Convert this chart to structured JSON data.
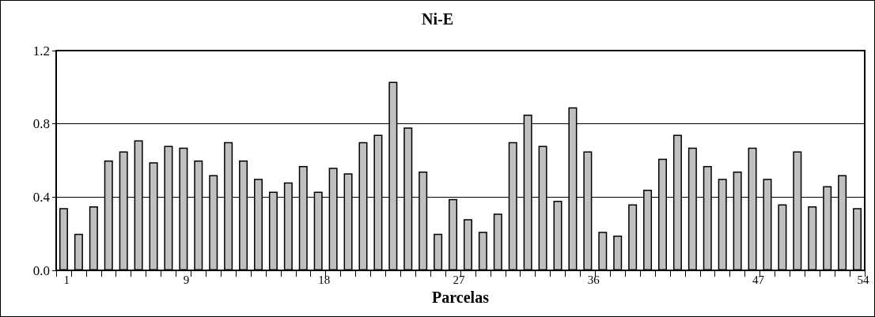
{
  "chart_data": {
    "type": "bar",
    "title": "Ni-E",
    "xlabel": "Parcelas",
    "categories": [
      "1",
      null,
      null,
      null,
      null,
      null,
      null,
      null,
      "9",
      null,
      null,
      null,
      null,
      null,
      null,
      null,
      null,
      "18",
      null,
      null,
      null,
      null,
      null,
      null,
      null,
      null,
      "27",
      null,
      null,
      null,
      null,
      null,
      null,
      null,
      null,
      "36",
      null,
      null,
      null,
      null,
      null,
      null,
      null,
      null,
      null,
      null,
      "47",
      null,
      null,
      null,
      null,
      null,
      null,
      "54"
    ],
    "values": [
      0.34,
      0.2,
      0.35,
      0.6,
      0.65,
      0.71,
      0.59,
      0.68,
      0.67,
      0.6,
      0.52,
      0.7,
      0.6,
      0.5,
      0.43,
      0.48,
      0.57,
      0.43,
      0.56,
      0.53,
      0.7,
      0.74,
      1.03,
      0.78,
      0.54,
      0.2,
      0.39,
      0.28,
      0.21,
      0.31,
      0.7,
      0.85,
      0.68,
      0.38,
      0.89,
      0.65,
      0.21,
      0.19,
      0.36,
      0.44,
      0.61,
      0.74,
      0.67,
      0.57,
      0.5,
      0.54,
      0.67,
      0.5,
      0.36,
      0.65,
      0.35,
      0.46,
      0.52,
      0.34
    ],
    "color": "#c0c0c0",
    "ylim": [
      0,
      1.2
    ],
    "yticks": [
      {
        "value": 0,
        "label": "0.0"
      },
      {
        "value": 0.4,
        "label": "0.4"
      },
      {
        "value": 0.8,
        "label": "0.8"
      },
      {
        "value": 1.2,
        "label": "1.2"
      }
    ],
    "grid": "y"
  }
}
